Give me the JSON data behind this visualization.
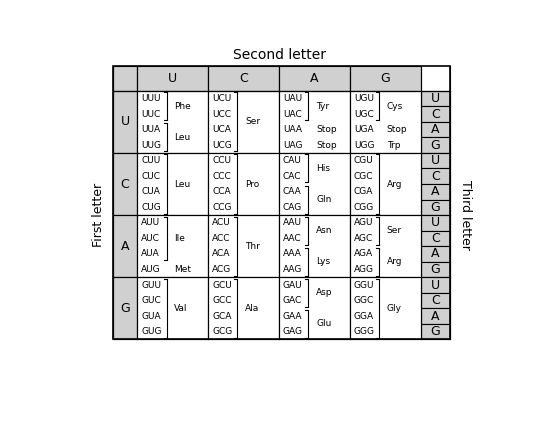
{
  "title": "Second letter",
  "first_letter_label": "First letter",
  "third_letter_label": "Third letter",
  "second_letters": [
    "U",
    "C",
    "A",
    "G"
  ],
  "first_letters": [
    "U",
    "C",
    "A",
    "G"
  ],
  "third_letters": [
    "U",
    "C",
    "A",
    "G"
  ],
  "cells": {
    "UU": {
      "codons": [
        "UUU",
        "UUC",
        "UUA",
        "UUG"
      ],
      "aa": [
        [
          "Phe",
          0,
          1
        ],
        [
          "Leu",
          2,
          3
        ]
      ]
    },
    "UC": {
      "codons": [
        "UCU",
        "UCC",
        "UCA",
        "UCG"
      ],
      "aa": [
        [
          "Ser",
          0,
          3
        ]
      ]
    },
    "UA": {
      "codons": [
        "UAU",
        "UAC",
        "UAA",
        "UAG"
      ],
      "aa": [
        [
          "Tyr",
          0,
          1
        ],
        [
          "Stop",
          2,
          2
        ],
        [
          "Stop",
          3,
          3
        ]
      ]
    },
    "UG": {
      "codons": [
        "UGU",
        "UGC",
        "UGA",
        "UGG"
      ],
      "aa": [
        [
          "Cys",
          0,
          1
        ],
        [
          "Stop",
          2,
          2
        ],
        [
          "Trp",
          3,
          3
        ]
      ]
    },
    "CU": {
      "codons": [
        "CUU",
        "CUC",
        "CUA",
        "CUG"
      ],
      "aa": [
        [
          "Leu",
          0,
          3
        ]
      ]
    },
    "CC": {
      "codons": [
        "CCU",
        "CCC",
        "CCA",
        "CCG"
      ],
      "aa": [
        [
          "Pro",
          0,
          3
        ]
      ]
    },
    "CA": {
      "codons": [
        "CAU",
        "CAC",
        "CAA",
        "CAG"
      ],
      "aa": [
        [
          "His",
          0,
          1
        ],
        [
          "Gln",
          2,
          3
        ]
      ]
    },
    "CG": {
      "codons": [
        "CGU",
        "CGC",
        "CGA",
        "CGG"
      ],
      "aa": [
        [
          "Arg",
          0,
          3
        ]
      ]
    },
    "AU": {
      "codons": [
        "AUU",
        "AUC",
        "AUA",
        "AUG"
      ],
      "aa": [
        [
          "Ile",
          0,
          2
        ],
        [
          "Met",
          3,
          3
        ]
      ]
    },
    "AC": {
      "codons": [
        "ACU",
        "ACC",
        "ACA",
        "ACG"
      ],
      "aa": [
        [
          "Thr",
          0,
          3
        ]
      ]
    },
    "AA": {
      "codons": [
        "AAU",
        "AAC",
        "AAA",
        "AAG"
      ],
      "aa": [
        [
          "Asn",
          0,
          1
        ],
        [
          "Lys",
          2,
          3
        ]
      ]
    },
    "AG": {
      "codons": [
        "AGU",
        "AGC",
        "AGA",
        "AGG"
      ],
      "aa": [
        [
          "Ser",
          0,
          1
        ],
        [
          "Arg",
          2,
          3
        ]
      ]
    },
    "GU": {
      "codons": [
        "GUU",
        "GUC",
        "GUA",
        "GUG"
      ],
      "aa": [
        [
          "Val",
          0,
          3
        ]
      ]
    },
    "GC": {
      "codons": [
        "GCU",
        "GCC",
        "GCA",
        "GCG"
      ],
      "aa": [
        [
          "Ala",
          0,
          3
        ]
      ]
    },
    "GA": {
      "codons": [
        "GAU",
        "GAC",
        "GAA",
        "GAG"
      ],
      "aa": [
        [
          "Asp",
          0,
          1
        ],
        [
          "Glu",
          2,
          3
        ]
      ]
    },
    "GG": {
      "codons": [
        "GGU",
        "GGC",
        "GGA",
        "GGG"
      ],
      "aa": [
        [
          "Gly",
          0,
          3
        ]
      ]
    }
  },
  "header_bg": "#d0d0d0",
  "cell_bg": "#ffffff",
  "third_letter_bg": "#d0d0d0",
  "grid_color": "#000000",
  "font_size_codon": 6.5,
  "font_size_aa": 6.5,
  "font_size_header": 9,
  "font_size_title": 10,
  "font_size_side_label": 9
}
